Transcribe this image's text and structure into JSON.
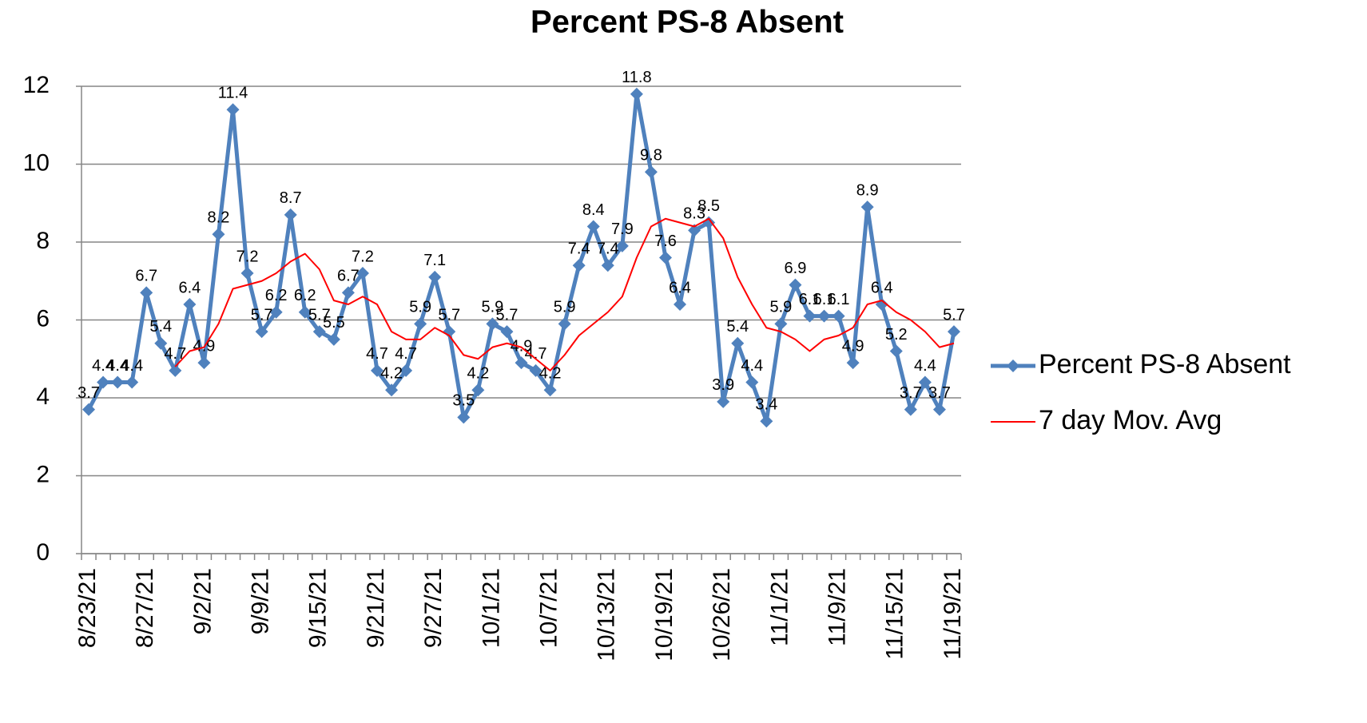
{
  "chart_data": {
    "type": "line",
    "title": "Percent PS-8 Absent",
    "categories": [
      "8/23/21",
      null,
      null,
      null,
      "8/27/21",
      null,
      null,
      null,
      "9/2/21",
      null,
      null,
      null,
      "9/9/21",
      null,
      null,
      null,
      "9/15/21",
      null,
      null,
      null,
      "9/21/21",
      null,
      null,
      null,
      "9/27/21",
      null,
      null,
      null,
      "10/1/21",
      null,
      null,
      null,
      "10/7/21",
      null,
      null,
      null,
      "10/13/21",
      null,
      null,
      null,
      "10/19/21",
      null,
      null,
      null,
      "10/26/21",
      null,
      null,
      null,
      "11/1/21",
      null,
      null,
      null,
      "11/9/21",
      null,
      null,
      null,
      "11/15/21",
      null,
      null,
      null,
      "11/19/21"
    ],
    "series": [
      {
        "name": "Percent PS-8 Absent",
        "color": "#4f81bd",
        "markers": true,
        "data_labels": true,
        "values": [
          3.7,
          4.4,
          4.4,
          4.4,
          6.7,
          5.4,
          4.7,
          6.4,
          4.9,
          8.2,
          11.4,
          7.2,
          5.7,
          6.2,
          8.7,
          6.2,
          5.7,
          5.5,
          6.7,
          7.2,
          4.7,
          4.2,
          4.7,
          5.9,
          7.1,
          5.7,
          3.5,
          4.2,
          5.9,
          5.7,
          4.9,
          4.7,
          4.2,
          5.9,
          7.4,
          8.4,
          7.4,
          7.9,
          11.8,
          9.8,
          7.6,
          6.4,
          8.3,
          8.5,
          3.9,
          5.4,
          4.4,
          3.4,
          5.9,
          6.9,
          6.1,
          6.1,
          6.1,
          4.9,
          8.9,
          6.4,
          5.2,
          3.7,
          4.4,
          3.7,
          5.7
        ]
      },
      {
        "name": "7 day Mov. Avg",
        "color": "#ff0000",
        "markers": false,
        "data_labels": false,
        "values": [
          null,
          null,
          null,
          null,
          null,
          null,
          4.8,
          5.2,
          5.3,
          5.9,
          6.8,
          6.9,
          7.0,
          7.2,
          7.5,
          7.7,
          7.3,
          6.5,
          6.4,
          6.6,
          6.4,
          5.7,
          5.5,
          5.5,
          5.8,
          5.6,
          5.1,
          5.0,
          5.3,
          5.4,
          5.3,
          5.0,
          4.7,
          5.1,
          5.6,
          5.9,
          6.2,
          6.6,
          7.6,
          8.4,
          8.6,
          8.5,
          8.4,
          8.6,
          8.1,
          7.1,
          6.4,
          5.8,
          5.7,
          5.5,
          5.2,
          5.5,
          5.6,
          5.8,
          6.4,
          6.5,
          6.2,
          6.0,
          5.7,
          5.3,
          5.4
        ]
      }
    ],
    "ylim": [
      0,
      12
    ],
    "yticks": [
      0,
      2,
      4,
      6,
      8,
      10,
      12
    ],
    "grid": true,
    "legend": "right"
  }
}
